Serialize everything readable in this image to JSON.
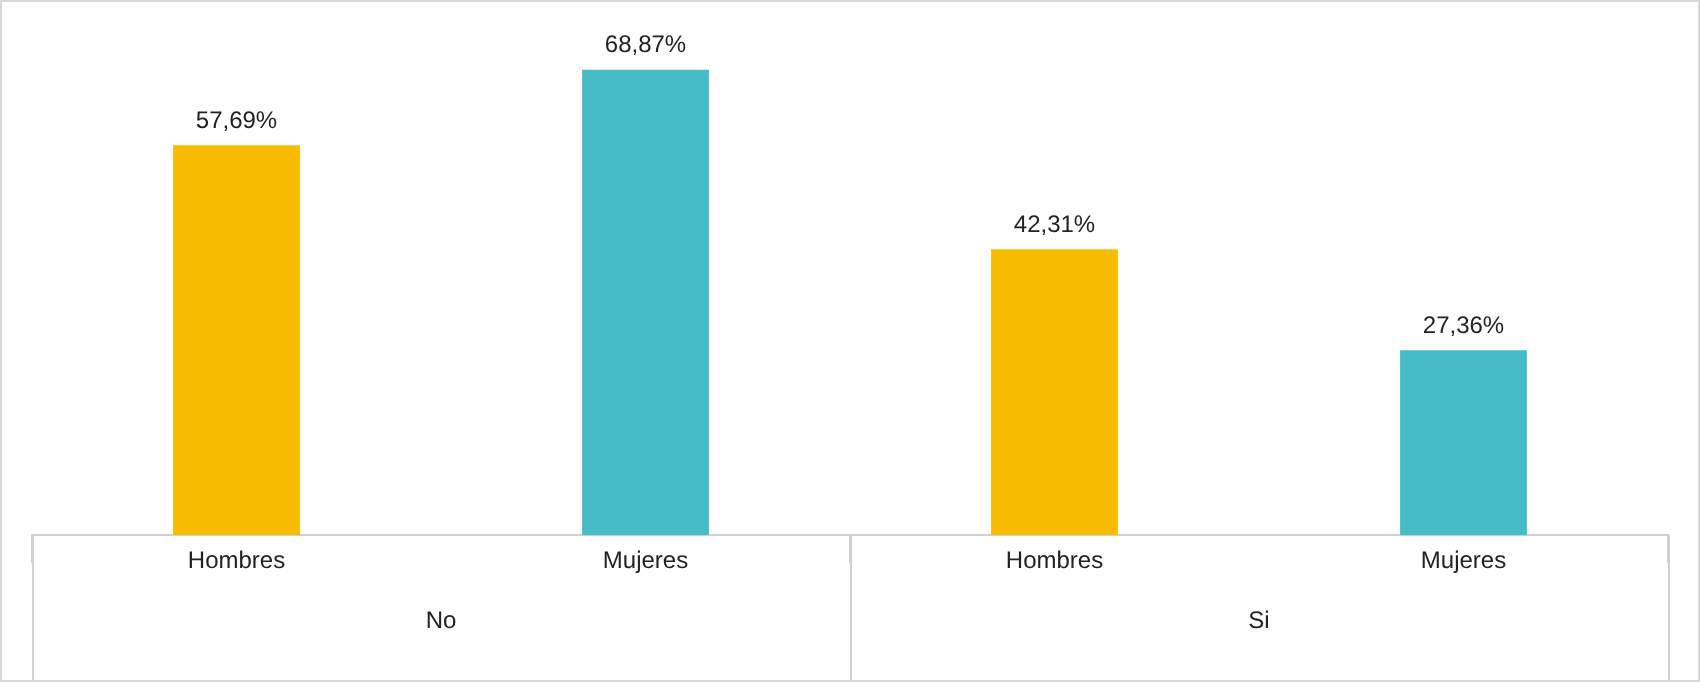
{
  "chart_data": {
    "type": "bar",
    "categories": [
      "No",
      "Si"
    ],
    "series": [
      {
        "name": "Hombres",
        "color": "#f9bc02",
        "values": [
          57.69,
          42.31
        ],
        "value_labels": [
          "57,69%",
          "42,31%"
        ]
      },
      {
        "name": "Mujeres",
        "color": "#46bdc6",
        "values": [
          68.87,
          27.36
        ],
        "value_labels": [
          "68,87%",
          "27,36%"
        ]
      }
    ],
    "grid": false,
    "legend": false
  }
}
